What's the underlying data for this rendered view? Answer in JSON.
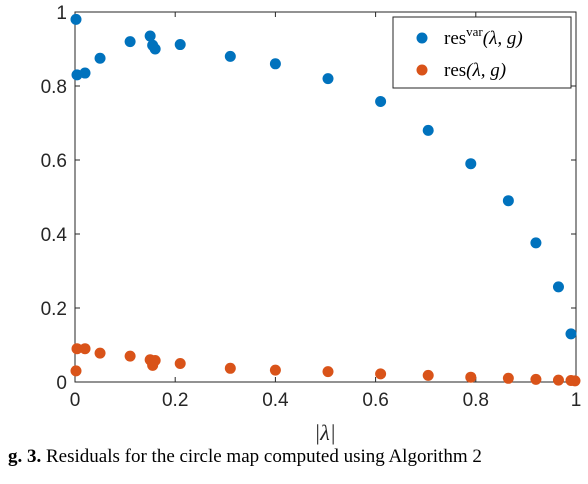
{
  "chart_data": {
    "type": "scatter",
    "xlabel": "|λ|",
    "ylabel": "",
    "xlim": [
      0,
      1
    ],
    "ylim": [
      0,
      1
    ],
    "xticks": [
      "0",
      "0.2",
      "0.4",
      "0.6",
      "0.8",
      "1"
    ],
    "yticks": [
      "0",
      "0.2",
      "0.4",
      "0.6",
      "0.8",
      "1"
    ],
    "grid": false,
    "legend_position": "top-right",
    "series": [
      {
        "name": "res^var(λ, g)",
        "legend_main": "res",
        "legend_sup": "var",
        "legend_args": "(λ, g)",
        "color": "#0072BD",
        "x": [
          0.002,
          0.004,
          0.02,
          0.05,
          0.11,
          0.15,
          0.155,
          0.16,
          0.21,
          0.31,
          0.4,
          0.505,
          0.61,
          0.705,
          0.79,
          0.865,
          0.92,
          0.965,
          0.99
        ],
        "y": [
          0.98,
          0.83,
          0.835,
          0.875,
          0.92,
          0.935,
          0.91,
          0.9,
          0.912,
          0.88,
          0.86,
          0.82,
          0.758,
          0.68,
          0.59,
          0.49,
          0.376,
          0.257,
          0.13
        ]
      },
      {
        "name": "res(λ, g)",
        "legend_main": "res",
        "legend_sup": "",
        "legend_args": "(λ, g)",
        "color": "#D95319",
        "x": [
          0.002,
          0.004,
          0.02,
          0.05,
          0.11,
          0.15,
          0.155,
          0.16,
          0.21,
          0.31,
          0.4,
          0.505,
          0.61,
          0.705,
          0.79,
          0.865,
          0.92,
          0.965,
          0.99,
          0.998
        ],
        "y": [
          0.03,
          0.09,
          0.09,
          0.078,
          0.07,
          0.06,
          0.045,
          0.058,
          0.05,
          0.037,
          0.032,
          0.028,
          0.022,
          0.018,
          0.013,
          0.01,
          0.007,
          0.005,
          0.004,
          0.003
        ]
      }
    ]
  },
  "caption": {
    "prefix": "g. 3.",
    "text": " Residuals for the circle map computed using Algorithm 2"
  }
}
